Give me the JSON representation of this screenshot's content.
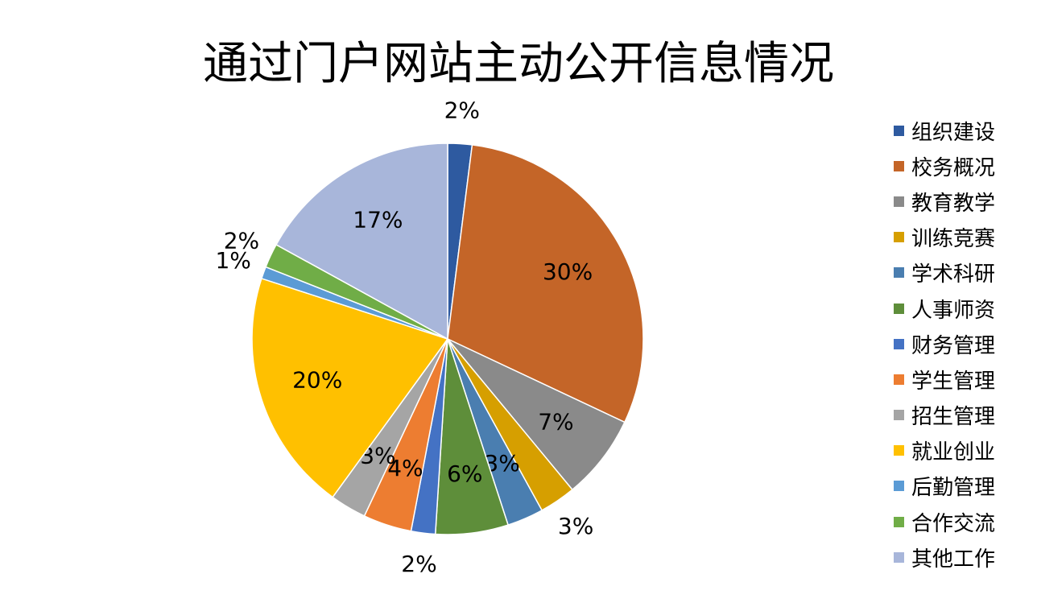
{
  "chart_data": {
    "type": "pie",
    "title": "通过门户网站主动公开信息情况",
    "legend_position": "right",
    "slices": [
      {
        "name": "组织建设",
        "value": 2,
        "label": "2%",
        "color": "#2E5AA0"
      },
      {
        "name": "校务概况",
        "value": 30,
        "label": "30%",
        "color": "#C46528"
      },
      {
        "name": "教育教学",
        "value": 7,
        "label": "7%",
        "color": "#8A8A8A"
      },
      {
        "name": "训练竞赛",
        "value": 3,
        "label": "3%",
        "color": "#D69F00"
      },
      {
        "name": "学术科研",
        "value": 3,
        "label": "3%",
        "color": "#4A7EB0"
      },
      {
        "name": "人事师资",
        "value": 6,
        "label": "6%",
        "color": "#5E8E3A"
      },
      {
        "name": "财务管理",
        "value": 2,
        "label": "2%",
        "color": "#4472C4"
      },
      {
        "name": "学生管理",
        "value": 4,
        "label": "4%",
        "color": "#ED7D31"
      },
      {
        "name": "招生管理",
        "value": 3,
        "label": "3%",
        "color": "#A5A5A5"
      },
      {
        "name": "就业创业",
        "value": 20,
        "label": "20%",
        "color": "#FFC000"
      },
      {
        "name": "后勤管理",
        "value": 1,
        "label": "1%",
        "color": "#5B9BD5"
      },
      {
        "name": "合作交流",
        "value": 2,
        "label": "2%",
        "color": "#70AD47"
      },
      {
        "name": "其他工作",
        "value": 17,
        "label": "17%",
        "color": "#A8B6DA"
      }
    ]
  }
}
